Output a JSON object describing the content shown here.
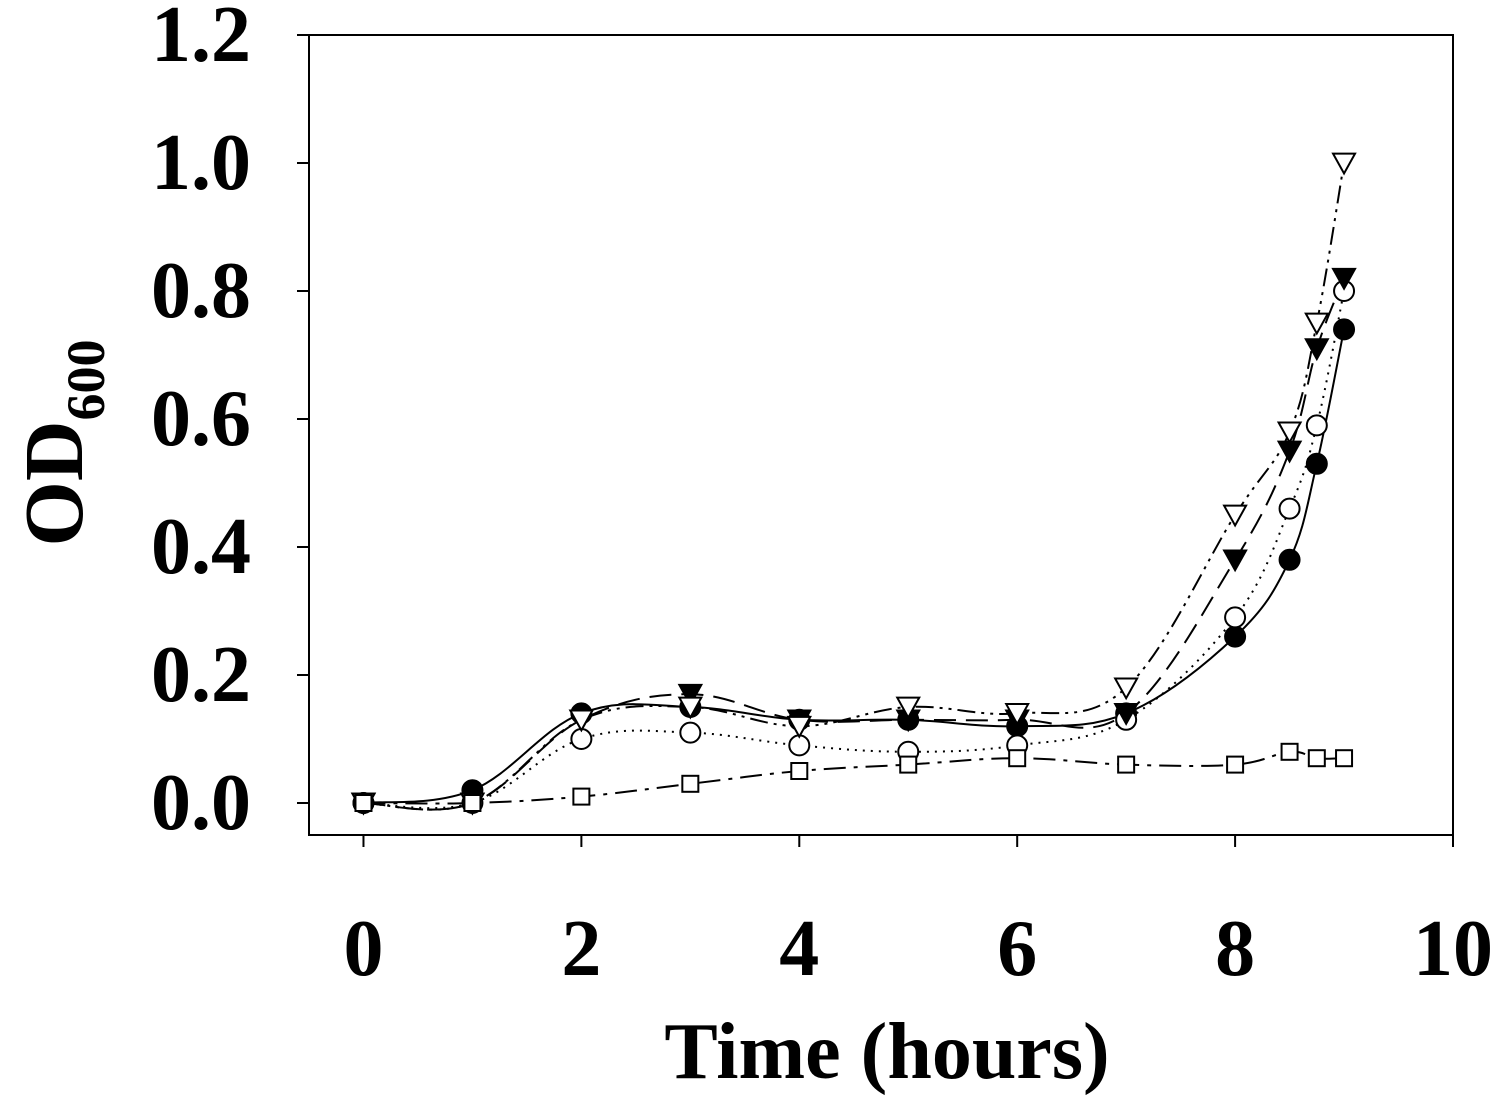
{
  "chart_data": {
    "type": "line",
    "title": "",
    "xlabel": "Time (hours)",
    "ylabel": "OD",
    "ylabel_subscript": "600",
    "xlim": [
      -0.5,
      10
    ],
    "ylim": [
      -0.05,
      1.2
    ],
    "x_ticks": [
      0,
      2,
      4,
      6,
      8,
      10
    ],
    "x_tick_labels": [
      "0",
      "2",
      "4",
      "6",
      "8",
      "10"
    ],
    "y_ticks": [
      0.0,
      0.2,
      0.4,
      0.6,
      0.8,
      1.0,
      1.2
    ],
    "y_tick_labels": [
      "0.0",
      "0.2",
      "0.4",
      "0.6",
      "0.8",
      "1.0",
      "1.2"
    ],
    "grid": false,
    "legend": "none",
    "series": [
      {
        "marker": "filled-circle",
        "line_style": "solid",
        "points": [
          [
            0,
            0.0
          ],
          [
            1,
            0.02
          ],
          [
            2,
            0.14
          ],
          [
            3,
            0.15
          ],
          [
            4,
            0.13
          ],
          [
            5,
            0.13
          ],
          [
            6,
            0.12
          ],
          [
            7,
            0.14
          ],
          [
            8,
            0.26
          ],
          [
            8.5,
            0.38
          ],
          [
            8.75,
            0.53
          ],
          [
            9,
            0.74
          ]
        ]
      },
      {
        "marker": "open-circle",
        "line_style": "dotted",
        "points": [
          [
            0,
            0.0
          ],
          [
            1,
            0.0
          ],
          [
            2,
            0.1
          ],
          [
            3,
            0.11
          ],
          [
            4,
            0.09
          ],
          [
            5,
            0.08
          ],
          [
            6,
            0.09
          ],
          [
            7,
            0.13
          ],
          [
            8,
            0.29
          ],
          [
            8.5,
            0.46
          ],
          [
            8.75,
            0.59
          ],
          [
            9,
            0.8
          ]
        ]
      },
      {
        "marker": "filled-triangle-down",
        "line_style": "dashed",
        "points": [
          [
            0,
            0.0
          ],
          [
            1,
            0.0
          ],
          [
            2,
            0.13
          ],
          [
            3,
            0.17
          ],
          [
            4,
            0.13
          ],
          [
            5,
            0.13
          ],
          [
            6,
            0.13
          ],
          [
            7,
            0.14
          ],
          [
            8,
            0.38
          ],
          [
            8.5,
            0.55
          ],
          [
            8.75,
            0.71
          ],
          [
            9,
            0.82
          ]
        ]
      },
      {
        "marker": "open-triangle-down",
        "line_style": "dash-dot-dot",
        "points": [
          [
            0,
            0.0
          ],
          [
            1,
            0.0
          ],
          [
            2,
            0.13
          ],
          [
            3,
            0.15
          ],
          [
            4,
            0.12
          ],
          [
            5,
            0.15
          ],
          [
            6,
            0.14
          ],
          [
            7,
            0.18
          ],
          [
            8,
            0.45
          ],
          [
            8.5,
            0.58
          ],
          [
            8.75,
            0.75
          ],
          [
            9,
            1.0
          ]
        ]
      },
      {
        "marker": "open-square",
        "line_style": "dash-dot",
        "points": [
          [
            0,
            0.0
          ],
          [
            1,
            0.0
          ],
          [
            2,
            0.01
          ],
          [
            3,
            0.03
          ],
          [
            4,
            0.05
          ],
          [
            5,
            0.06
          ],
          [
            6,
            0.07
          ],
          [
            7,
            0.06
          ],
          [
            8,
            0.06
          ],
          [
            8.5,
            0.08
          ],
          [
            8.75,
            0.07
          ],
          [
            9,
            0.07
          ]
        ]
      }
    ]
  }
}
